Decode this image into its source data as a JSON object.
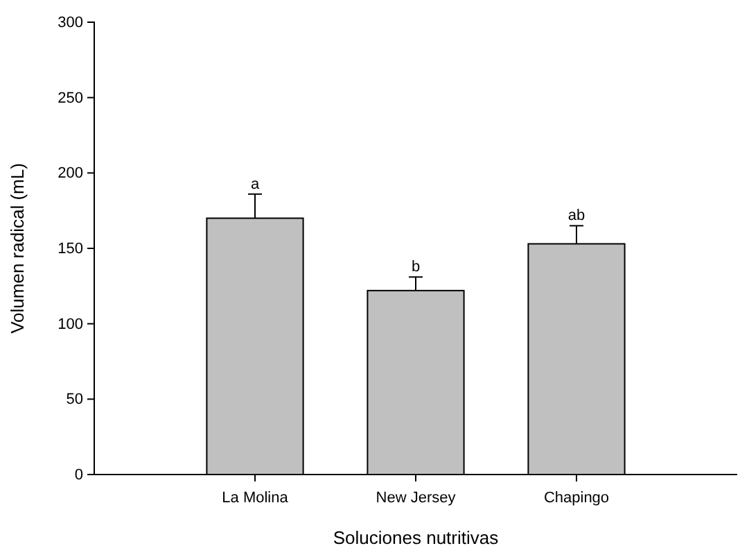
{
  "chart_data": {
    "type": "bar",
    "xlabel": "Soluciones nutritivas",
    "ylabel": "Volumen radical (mL)",
    "categories": [
      "La Molina",
      "New Jersey",
      "Chapingo"
    ],
    "values": [
      170,
      122,
      153
    ],
    "errors": [
      [
        170,
        186
      ],
      [
        122,
        131
      ],
      [
        153,
        165
      ]
    ],
    "color": "#c0c0c0",
    "ylim": [
      0,
      300
    ],
    "yticks": [
      0,
      50,
      100,
      150,
      200,
      250,
      300
    ],
    "grid": false,
    "annotations": [
      {
        "text": "a",
        "x": "La Molina",
        "y": 186
      },
      {
        "text": "b",
        "x": "New Jersey",
        "y": 131
      },
      {
        "text": "ab",
        "x": "Chapingo",
        "y": 165
      }
    ]
  }
}
